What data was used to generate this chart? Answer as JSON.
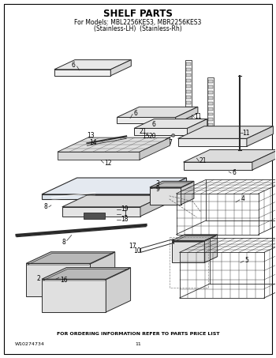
{
  "title": "SHELF PARTS",
  "subtitle_line1": "For Models: MBL2256KES3, MBR2256KES3",
  "subtitle_line2": "(Stainless-LH)  (Stainless-Rh)",
  "footer_center": "FOR ORDERING INFORMATION REFER TO PARTS PRICE LIST",
  "footer_left": "W10274734",
  "footer_page": "11",
  "bg_color": "#ffffff",
  "title_fontsize": 8.5,
  "subtitle_fontsize": 5.5,
  "footer_fontsize": 4.5,
  "label_fontsize": 5.5
}
